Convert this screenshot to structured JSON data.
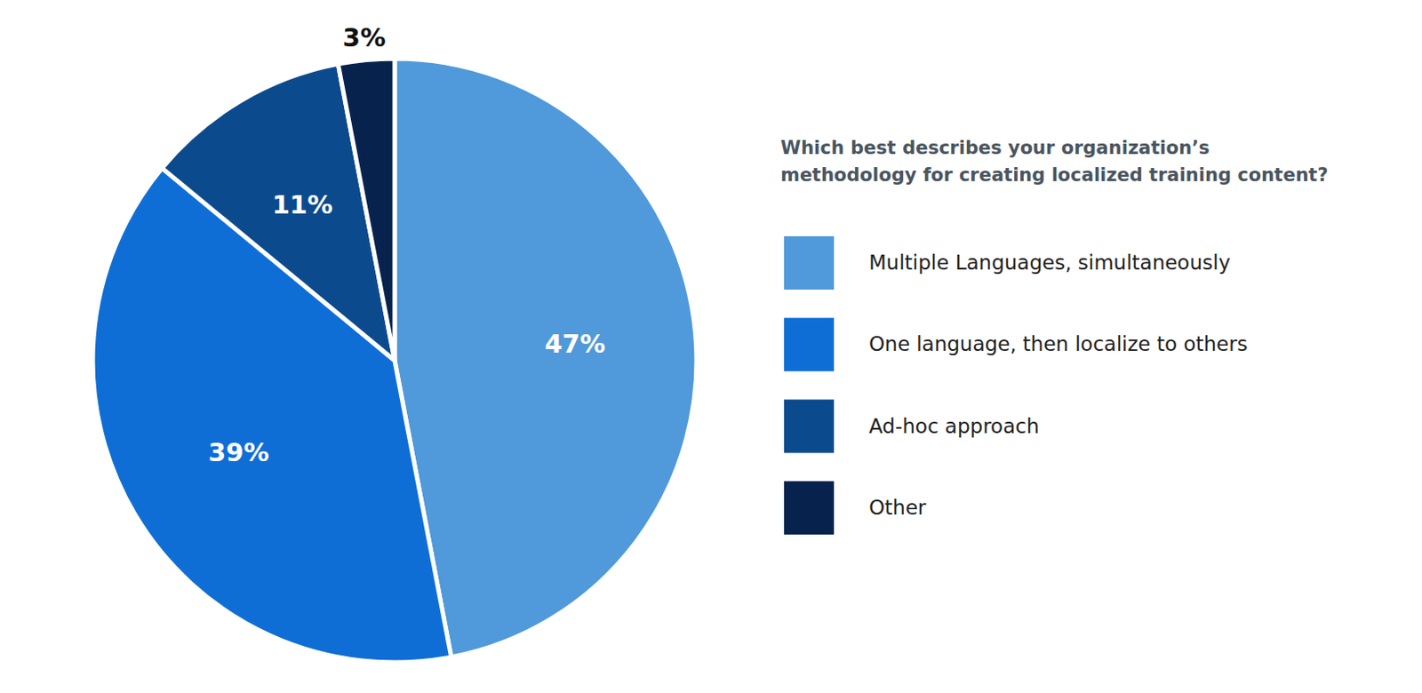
{
  "chart_data": {
    "type": "pie",
    "title": "Which best describes your organization’s\nmethodology for creating localized training content?",
    "categories": [
      "Multiple Languages, simultaneously",
      "One language, then localize to others",
      "Ad-hoc approach",
      "Other"
    ],
    "values": [
      47,
      39,
      11,
      3
    ],
    "value_labels": [
      "47%",
      "39%",
      "11%",
      "3%"
    ],
    "colors": [
      "#5099da",
      "#0f6ed6",
      "#0c4a8e",
      "#07234d"
    ],
    "data_labels": true,
    "legend": "right"
  }
}
